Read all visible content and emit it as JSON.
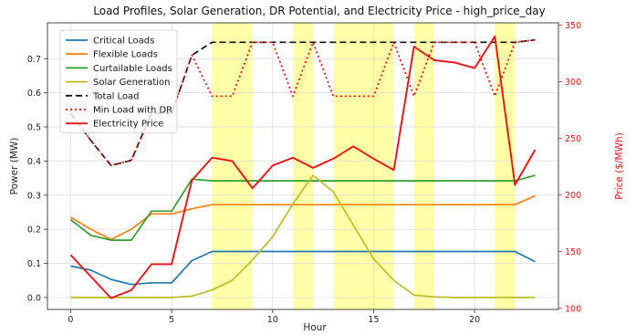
{
  "chart_data": {
    "type": "line",
    "title": "Load Profiles, Solar Generation, DR Potential, and Electricity Price - high_price_day",
    "xlabel": "Hour",
    "ylabel_left": "Power (MW)",
    "ylabel_right": "Price ($/MWh)",
    "xlim": [
      -1.15,
      24.15
    ],
    "ylim_left": [
      -0.035,
      0.805
    ],
    "ylim_right": [
      99.0,
      352.0
    ],
    "xticks": [
      0,
      5,
      10,
      15,
      20
    ],
    "yticks_left": [
      0.0,
      0.1,
      0.2,
      0.3,
      0.4,
      0.5,
      0.6,
      0.7
    ],
    "yticks_right": [
      100,
      150,
      200,
      250,
      300,
      350
    ],
    "grid": true,
    "legend_position": "upper-left",
    "x": [
      0,
      1,
      2,
      3,
      4,
      5,
      6,
      7,
      8,
      9,
      10,
      11,
      12,
      13,
      14,
      15,
      16,
      17,
      18,
      19,
      20,
      21,
      22,
      23
    ],
    "high_price_bands": [
      [
        7,
        9
      ],
      [
        11,
        12
      ],
      [
        13,
        16
      ],
      [
        17,
        18
      ],
      [
        21,
        22
      ]
    ],
    "band_color": "#ffff99",
    "series": [
      {
        "name": "Critical Loads",
        "axis": "left",
        "color": "#1f77b4",
        "dash": "",
        "values": [
          0.092,
          0.08,
          0.053,
          0.038,
          0.043,
          0.043,
          0.108,
          0.135,
          0.135,
          0.135,
          0.135,
          0.135,
          0.135,
          0.135,
          0.135,
          0.135,
          0.135,
          0.135,
          0.135,
          0.135,
          0.135,
          0.135,
          0.135,
          0.105
        ]
      },
      {
        "name": "Flexible Loads",
        "axis": "left",
        "color": "#ff7f0e",
        "dash": "",
        "values": [
          0.235,
          0.2,
          0.17,
          0.2,
          0.245,
          0.245,
          0.26,
          0.272,
          0.272,
          0.272,
          0.272,
          0.272,
          0.272,
          0.272,
          0.272,
          0.272,
          0.272,
          0.272,
          0.272,
          0.272,
          0.272,
          0.272,
          0.272,
          0.298
        ]
      },
      {
        "name": "Curtailable Loads",
        "axis": "left",
        "color": "#2ca02c",
        "dash": "",
        "values": [
          0.228,
          0.182,
          0.168,
          0.168,
          0.253,
          0.253,
          0.347,
          0.342,
          0.342,
          0.342,
          0.342,
          0.342,
          0.342,
          0.342,
          0.342,
          0.342,
          0.342,
          0.342,
          0.342,
          0.342,
          0.342,
          0.342,
          0.342,
          0.358
        ]
      },
      {
        "name": "Solar Generation",
        "axis": "left",
        "color": "#bcbd22",
        "dash": "",
        "values": [
          0.0,
          0.0,
          0.0,
          0.0,
          0.0,
          0.0,
          0.004,
          0.022,
          0.05,
          0.11,
          0.178,
          0.274,
          0.358,
          0.31,
          0.212,
          0.113,
          0.05,
          0.007,
          0.002,
          0.0,
          0.0,
          0.0,
          0.0,
          0.0
        ]
      },
      {
        "name": "Total Load",
        "axis": "left",
        "color": "#111111",
        "dash": "7,4",
        "values": [
          0.54,
          0.46,
          0.387,
          0.402,
          0.54,
          0.54,
          0.71,
          0.748,
          0.748,
          0.748,
          0.748,
          0.748,
          0.748,
          0.748,
          0.748,
          0.748,
          0.748,
          0.748,
          0.748,
          0.748,
          0.748,
          0.748,
          0.748,
          0.755
        ]
      },
      {
        "name": "Min Load with DR",
        "axis": "left",
        "color": "#ff0000",
        "dash": "2,3",
        "values": [
          0.54,
          0.46,
          0.387,
          0.402,
          0.54,
          0.54,
          0.71,
          0.59,
          0.59,
          0.748,
          0.748,
          0.59,
          0.748,
          0.59,
          0.59,
          0.59,
          0.748,
          0.59,
          0.748,
          0.748,
          0.748,
          0.59,
          0.748,
          0.755
        ]
      },
      {
        "name": "Electricity Price",
        "axis": "right",
        "color": "#ee1111",
        "dash": "",
        "values": [
          147,
          128,
          109,
          116,
          139,
          139,
          213,
          233,
          230,
          206,
          226,
          233,
          224,
          232,
          243,
          232,
          222,
          331,
          319,
          317,
          312,
          340,
          209,
          240
        ]
      }
    ]
  }
}
